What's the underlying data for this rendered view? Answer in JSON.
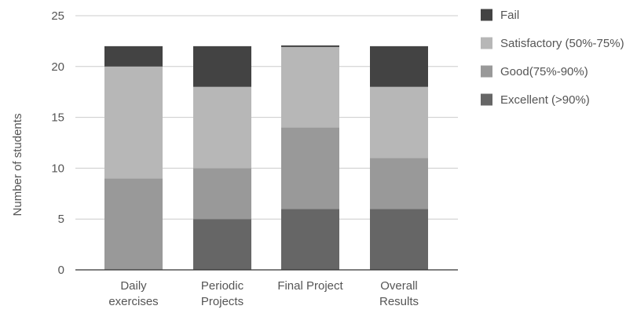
{
  "chart_data": {
    "type": "bar",
    "stacked": true,
    "categories": [
      [
        "Daily",
        "exercises"
      ],
      [
        "Periodic",
        "Projects"
      ],
      [
        "Final Project"
      ],
      [
        "Overall",
        "Results"
      ]
    ],
    "series": [
      {
        "name": "Excellent (>90%)",
        "color": "#666666",
        "values": [
          0,
          5,
          6,
          6
        ]
      },
      {
        "name": "Good(75%-90%)",
        "color": "#999999",
        "values": [
          9,
          5,
          8,
          5
        ]
      },
      {
        "name": "Satisfactory (50%-75%)",
        "color": "#b7b7b7",
        "values": [
          11,
          8,
          8,
          7
        ]
      },
      {
        "name": "Fail",
        "color": "#434343",
        "values": [
          2,
          4,
          0,
          4
        ]
      }
    ],
    "legend_order": [
      "Fail",
      "Satisfactory (50%-75%)",
      "Good(75%-90%)",
      "Excellent (>90%)"
    ],
    "xlabel": "",
    "ylabel": "Number of students",
    "ylim": [
      0,
      25
    ],
    "yticks": [
      0,
      5,
      10,
      15,
      20,
      25
    ],
    "grid": true,
    "legend_position": "right"
  }
}
